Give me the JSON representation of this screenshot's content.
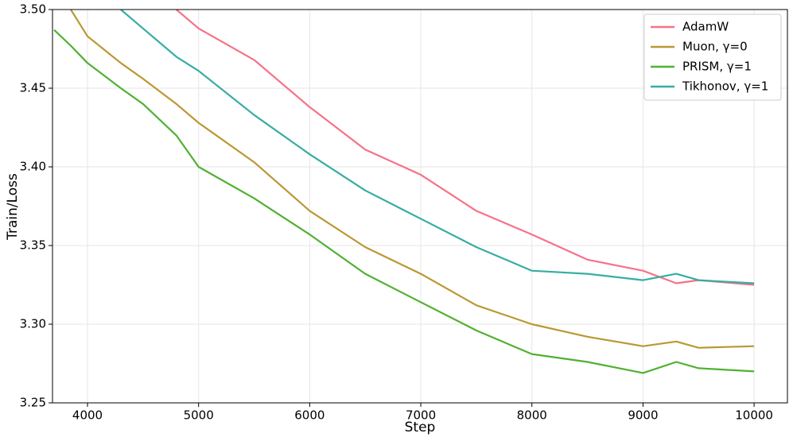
{
  "chart_data": {
    "type": "line",
    "xlabel": "Step",
    "ylabel": "Train/Loss",
    "x": [
      3700,
      3850,
      4000,
      4300,
      4500,
      4800,
      5000,
      5500,
      6000,
      6500,
      7000,
      7500,
      8000,
      8500,
      9000,
      9300,
      9500,
      10000
    ],
    "series": [
      {
        "name": "AdamW",
        "color": "#f77189",
        "values": [
          null,
          null,
          null,
          null,
          null,
          3.5,
          3.488,
          3.468,
          3.438,
          3.411,
          3.395,
          3.372,
          3.357,
          3.341,
          3.334,
          3.326,
          3.328,
          3.325
        ]
      },
      {
        "name": "Muon, γ=0",
        "color": "#bb9832",
        "values": [
          null,
          3.5,
          3.483,
          3.466,
          3.456,
          3.44,
          3.428,
          3.403,
          3.372,
          3.349,
          3.332,
          3.312,
          3.3,
          3.292,
          3.286,
          3.289,
          3.285,
          3.286
        ]
      },
      {
        "name": "PRISM, γ=1",
        "color": "#50b131",
        "values": [
          3.487,
          3.477,
          3.466,
          3.45,
          3.44,
          3.42,
          3.4,
          3.38,
          3.357,
          3.332,
          3.314,
          3.296,
          3.281,
          3.276,
          3.269,
          3.276,
          3.272,
          3.27
        ]
      },
      {
        "name": "Tikhonov, γ=1",
        "color": "#36ada4",
        "values": [
          null,
          null,
          null,
          3.5,
          3.488,
          3.47,
          3.461,
          3.433,
          3.408,
          3.385,
          3.367,
          3.349,
          3.334,
          3.332,
          3.328,
          3.332,
          3.328,
          3.326
        ]
      }
    ],
    "xlim": [
      3685,
      10300
    ],
    "ylim": [
      3.25,
      3.5
    ],
    "xticks": [
      4000,
      5000,
      6000,
      7000,
      8000,
      9000,
      10000
    ],
    "yticks": [
      3.25,
      {
        "value": 3.3,
        "label": "3.30"
      },
      3.35,
      {
        "value": 3.4,
        "label": "3.40"
      },
      3.45,
      {
        "value": 3.5,
        "label": "3.50"
      }
    ],
    "grid": true,
    "legend": "upper right"
  }
}
